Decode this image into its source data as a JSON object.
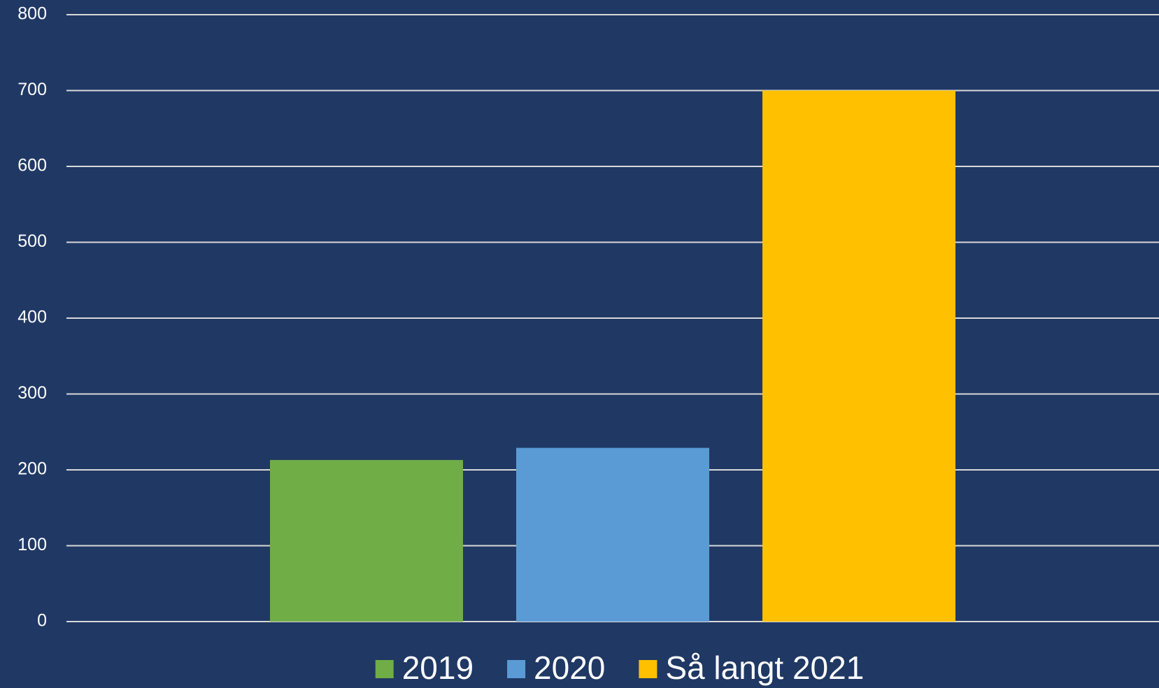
{
  "chart_data": {
    "type": "bar",
    "categories": [
      null
    ],
    "series": [
      {
        "name": "2019",
        "color": "#70ad47",
        "values": [
          213
        ]
      },
      {
        "name": "2020",
        "color": "#5b9bd5",
        "values": [
          229
        ]
      },
      {
        "name": "Så langt 2021",
        "color": "#ffc000",
        "values": [
          700
        ]
      }
    ],
    "ylim": [
      0,
      800
    ],
    "yticks": [
      0,
      100,
      200,
      300,
      400,
      500,
      600,
      700,
      800
    ],
    "grid": true,
    "legend": "bottom"
  }
}
